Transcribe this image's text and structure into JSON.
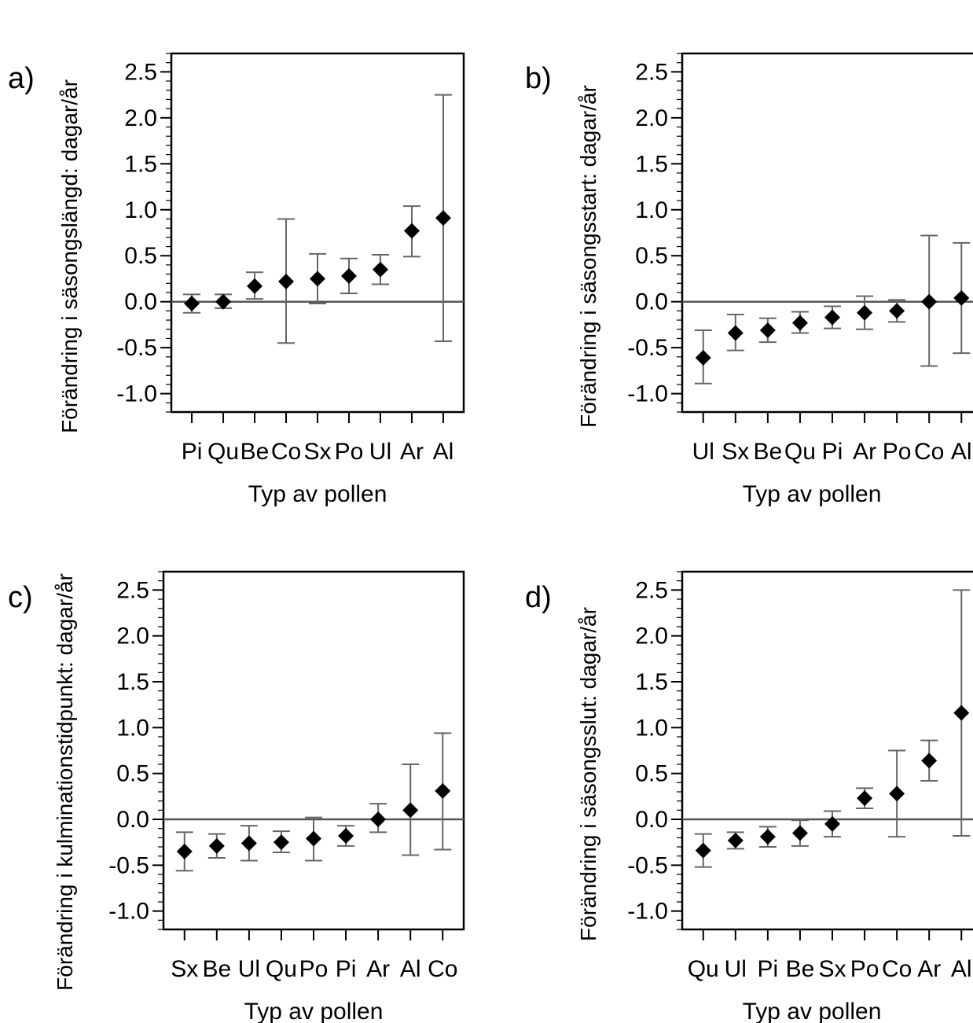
{
  "chart_data": [
    {
      "panel": "a)",
      "type": "scatter",
      "error_bars": true,
      "xlabel": "Typ av pollen",
      "ylabel": "Förändring i säsongslängd: dagar/år",
      "ylim": [
        -1.2,
        2.7
      ],
      "yticks": [
        "2.5",
        "2.0",
        "1.5",
        "1.0",
        "0.5",
        "0.0",
        "-0.5",
        "-1.0"
      ],
      "reference_line": 0,
      "categories": [
        "Pi",
        "Qu",
        "Be",
        "Co",
        "Sx",
        "Po",
        "Ul",
        "Ar",
        "Al"
      ],
      "values": [
        -0.02,
        0.0,
        0.17,
        0.22,
        0.25,
        0.28,
        0.35,
        0.77,
        0.91
      ],
      "lower": [
        -0.12,
        -0.07,
        0.03,
        -0.45,
        -0.02,
        0.09,
        0.19,
        0.49,
        -0.43
      ],
      "upper": [
        0.08,
        0.08,
        0.32,
        0.9,
        0.52,
        0.47,
        0.51,
        1.04,
        2.25
      ]
    },
    {
      "panel": "b)",
      "type": "scatter",
      "error_bars": true,
      "xlabel": "Typ av pollen",
      "ylabel": "Förändring i säsongsstart: dagar/år",
      "ylim": [
        -1.2,
        2.7
      ],
      "yticks": [
        "2.5",
        "2.0",
        "1.5",
        "1.0",
        "0.5",
        "0.0",
        "-0.5",
        "-1.0"
      ],
      "reference_line": 0,
      "categories": [
        "Ul",
        "Sx",
        "Be",
        "Qu",
        "Pi",
        "Ar",
        "Po",
        "Co",
        "Al"
      ],
      "values": [
        -0.61,
        -0.34,
        -0.31,
        -0.23,
        -0.17,
        -0.12,
        -0.1,
        0.0,
        0.04
      ],
      "lower": [
        -0.89,
        -0.53,
        -0.44,
        -0.34,
        -0.29,
        -0.3,
        -0.22,
        -0.7,
        -0.56
      ],
      "upper": [
        -0.31,
        -0.14,
        -0.18,
        -0.11,
        -0.05,
        0.06,
        0.02,
        0.72,
        0.64
      ]
    },
    {
      "panel": "c)",
      "type": "scatter",
      "error_bars": true,
      "xlabel": "Typ av pollen",
      "ylabel": "Förändring i kulminationstidpunkt: dagar/år",
      "ylim": [
        -1.2,
        2.7
      ],
      "yticks": [
        "2.5",
        "2.0",
        "1.5",
        "1.0",
        "0.5",
        "0.0",
        "-0.5",
        "-1.0"
      ],
      "reference_line": 0,
      "categories": [
        "Sx",
        "Be",
        "Ul",
        "Qu",
        "Po",
        "Pi",
        "Ar",
        "Al",
        "Co"
      ],
      "values": [
        -0.35,
        -0.29,
        -0.26,
        -0.25,
        -0.21,
        -0.18,
        0.0,
        0.1,
        0.31
      ],
      "lower": [
        -0.56,
        -0.42,
        -0.45,
        -0.36,
        -0.45,
        -0.29,
        -0.14,
        -0.39,
        -0.33
      ],
      "upper": [
        -0.14,
        -0.16,
        -0.07,
        -0.13,
        0.02,
        -0.07,
        0.17,
        0.6,
        0.94
      ]
    },
    {
      "panel": "d)",
      "type": "scatter",
      "error_bars": true,
      "xlabel": "Typ av pollen",
      "ylabel": "Förändring i säsongsslut: dagar/år",
      "ylim": [
        -1.2,
        2.7
      ],
      "yticks": [
        "2.5",
        "2.0",
        "1.5",
        "1.0",
        "0.5",
        "0.0",
        "-0.5",
        "-1.0"
      ],
      "reference_line": 0,
      "categories": [
        "Qu",
        "Ul",
        "Pi",
        "Be",
        "Sx",
        "Po",
        "Co",
        "Ar",
        "Al"
      ],
      "values": [
        -0.34,
        -0.23,
        -0.19,
        -0.15,
        -0.05,
        0.23,
        0.28,
        0.64,
        1.16
      ],
      "lower": [
        -0.52,
        -0.32,
        -0.3,
        -0.29,
        -0.19,
        0.12,
        -0.19,
        0.42,
        -0.18
      ],
      "upper": [
        -0.16,
        -0.14,
        -0.08,
        -0.01,
        0.09,
        0.34,
        0.75,
        0.86,
        2.5
      ]
    }
  ]
}
